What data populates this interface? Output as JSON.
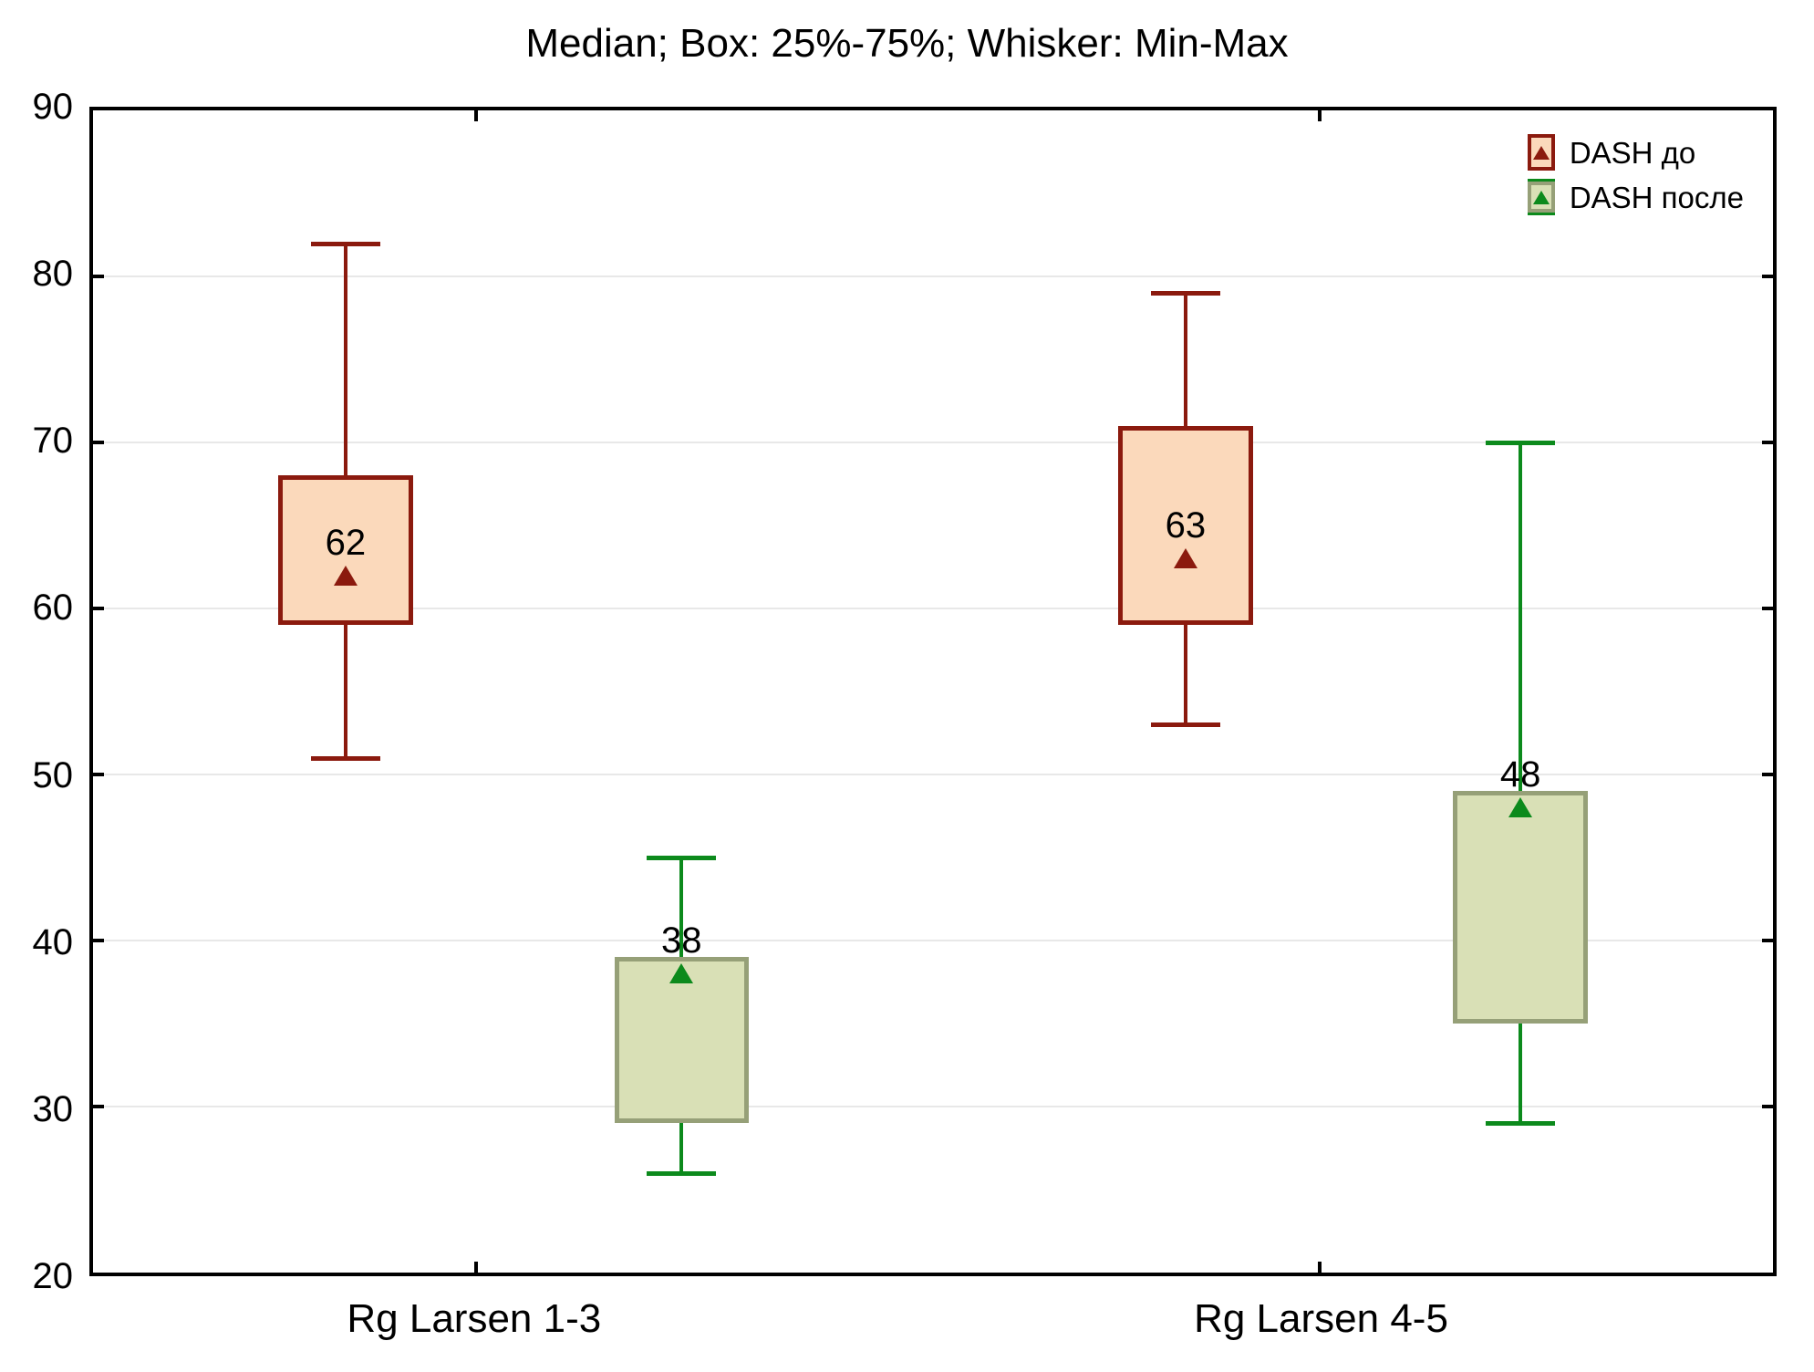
{
  "title": "Median; Box: 25%-75%; Whisker: Min-Max",
  "legend": {
    "items": [
      {
        "label": "DASH до",
        "series": "before"
      },
      {
        "label": "DASH после",
        "series": "after"
      }
    ]
  },
  "colors": {
    "before_border": "#8b1a0e",
    "before_fill": "#fbd9bb",
    "before_line": "#8b1a0e",
    "after_border": "#96a078",
    "after_fill": "#d9e0b6",
    "after_line": "#0c8a1c",
    "gridline": "#e8e8e8",
    "axis_frame": "#000000",
    "text": "#000000"
  },
  "chart_data": {
    "type": "boxplot",
    "title": "Median; Box: 25%-75%; Whisker: Min-Max",
    "categories": [
      "Rg Larsen 1-3",
      "Rg Larsen 4-5"
    ],
    "series": [
      {
        "name": "DASH до",
        "key": "before",
        "boxes": [
          {
            "category": "Rg Larsen 1-3",
            "min": 51,
            "q1": 59,
            "median": 62,
            "q3": 68,
            "max": 82
          },
          {
            "category": "Rg Larsen 4-5",
            "min": 53,
            "q1": 59,
            "median": 63,
            "q3": 71,
            "max": 79
          }
        ]
      },
      {
        "name": "DASH после",
        "key": "after",
        "boxes": [
          {
            "category": "Rg Larsen 1-3",
            "min": 26,
            "q1": 29,
            "median": 38,
            "q3": 39,
            "max": 45
          },
          {
            "category": "Rg Larsen 4-5",
            "min": 29,
            "q1": 35,
            "median": 48,
            "q3": 49,
            "max": 70
          }
        ]
      }
    ],
    "ylim": [
      20,
      90
    ],
    "yticks": [
      90,
      80,
      70,
      60,
      50,
      40,
      30,
      20
    ],
    "gridline_values": [
      80,
      70,
      60,
      50,
      40,
      30
    ],
    "grid": "horizontal",
    "legend_position": "top-right-inside",
    "box_represents": "25%-75%",
    "whisker_represents": "Min-Max",
    "center_represents": "Median"
  }
}
